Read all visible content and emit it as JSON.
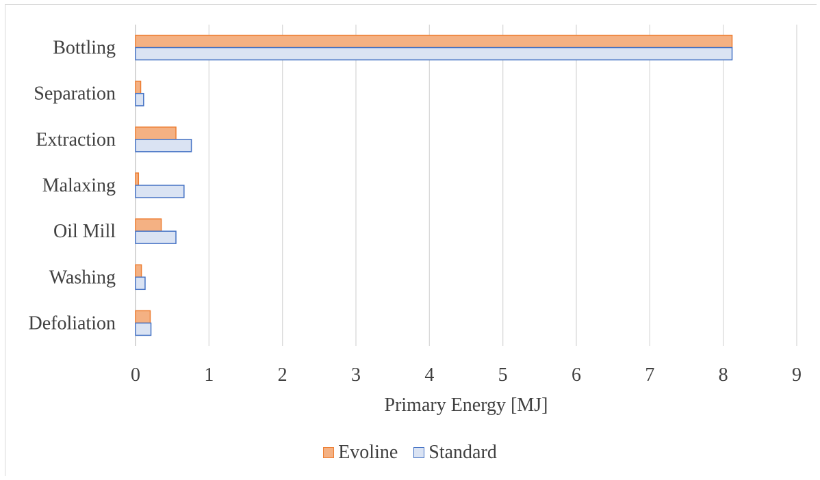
{
  "chart_data": {
    "type": "bar",
    "orientation": "horizontal",
    "categories": [
      "Bottling",
      "Separation",
      "Extraction",
      "Malaxing",
      "Oil Mill",
      "Washing",
      "Defoliation"
    ],
    "series": [
      {
        "name": "Evoline",
        "values": [
          8.12,
          0.07,
          0.55,
          0.04,
          0.35,
          0.08,
          0.2
        ],
        "fill": "#f4b183",
        "stroke": "#ed7d31"
      },
      {
        "name": "Standard",
        "values": [
          8.12,
          0.11,
          0.76,
          0.66,
          0.55,
          0.13,
          0.21
        ],
        "fill": "#dae3f3",
        "stroke": "#4472c4"
      }
    ],
    "xlabel": "Primary Energy [MJ]",
    "ylabel": "",
    "xlim": [
      0,
      9
    ],
    "xticks": [
      "0",
      "1",
      "2",
      "3",
      "4",
      "5",
      "6",
      "7",
      "8",
      "9"
    ],
    "grid": true,
    "legend_position": "bottom"
  }
}
